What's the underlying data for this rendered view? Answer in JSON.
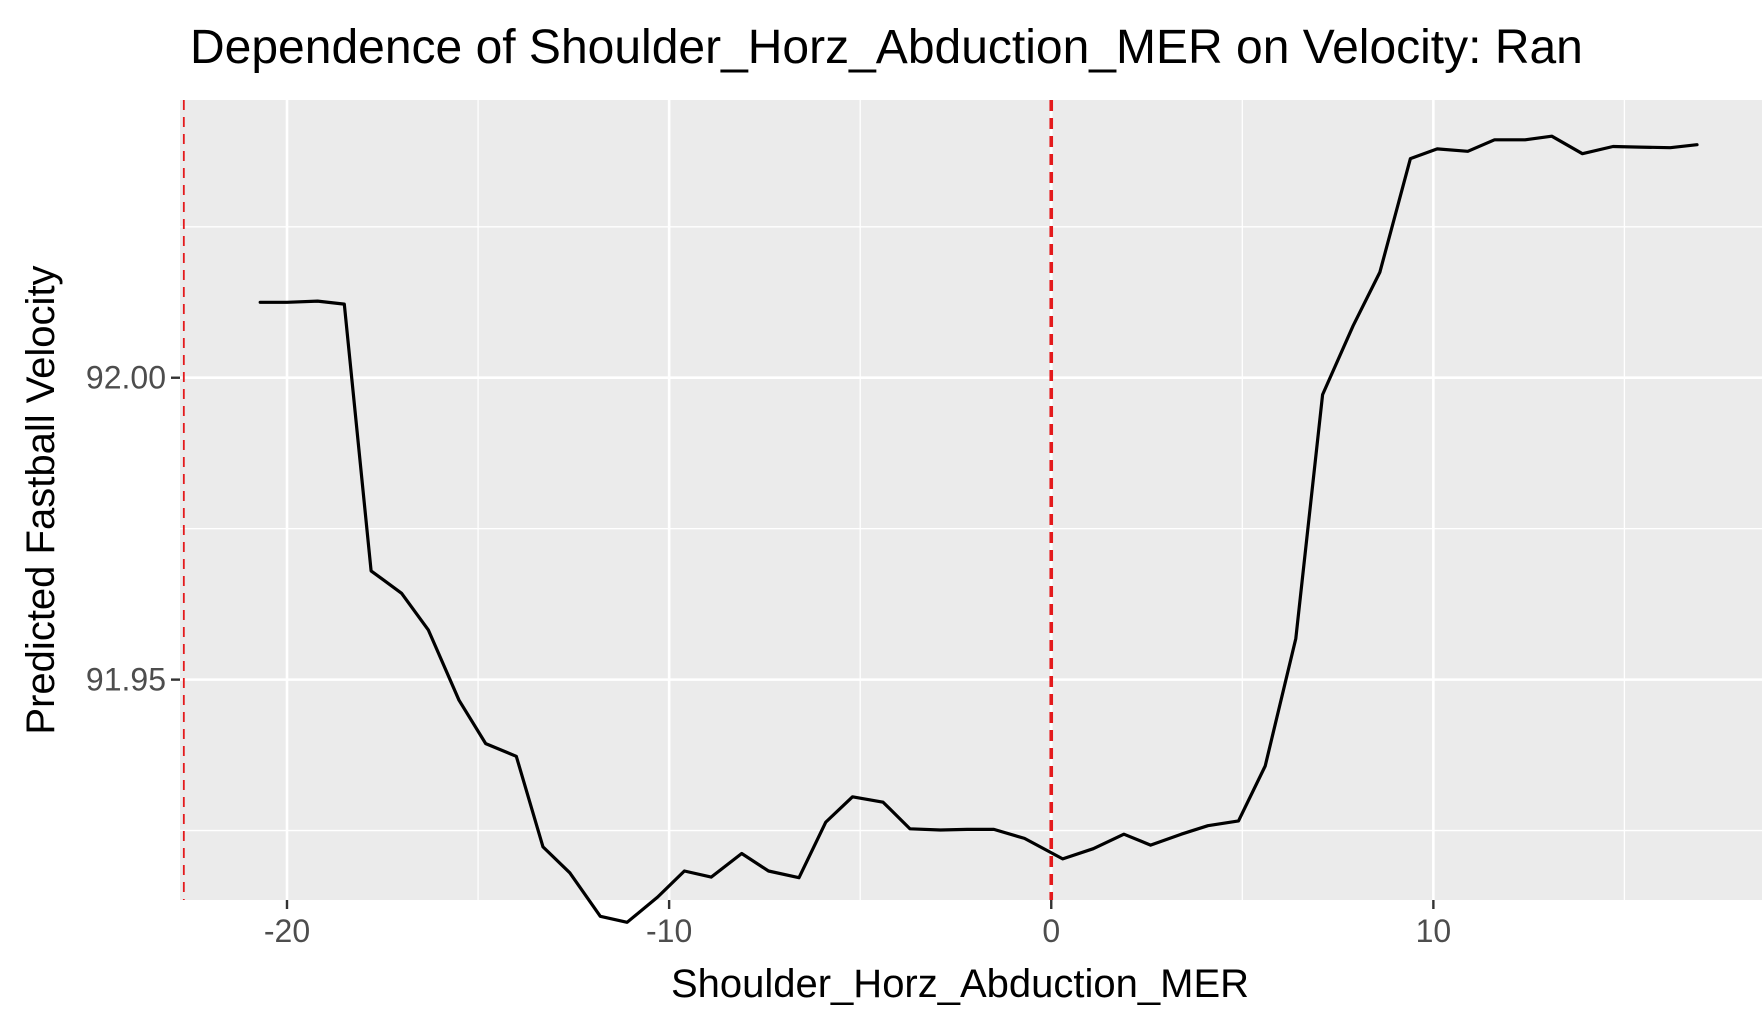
{
  "chart_data": {
    "type": "line",
    "title": "Dependence of Shoulder_Horz_Abduction_MER on Velocity: Ran",
    "xlabel": "Shoulder_Horz_Abduction_MER",
    "ylabel": "Predicted Fastball Velocity",
    "xlim": [
      -22.8,
      18.6
    ],
    "ylim": [
      91.9135,
      92.046
    ],
    "x_ticks": [
      -20,
      -10,
      0,
      10
    ],
    "x_tick_labels": [
      "-20",
      "-10",
      "0",
      "10"
    ],
    "y_ticks": [
      91.95,
      92.0
    ],
    "y_tick_labels": [
      "91.95",
      "92.00"
    ],
    "grid": true,
    "reference_lines": [
      {
        "x": -22.7,
        "color": "#e41a1c",
        "style": "dashed",
        "weight": "thin"
      },
      {
        "x": 0.0,
        "color": "#e41a1c",
        "style": "dashed",
        "weight": "thick"
      }
    ],
    "series": [
      {
        "color": "#000000",
        "x": [
          -20.7,
          -20.0,
          -19.2,
          -18.5,
          -17.8,
          -17.0,
          -16.3,
          -15.5,
          -14.8,
          -14.0,
          -13.3,
          -12.6,
          -11.8,
          -11.1,
          -10.3,
          -9.6,
          -8.9,
          -8.1,
          -7.4,
          -6.6,
          -5.9,
          -5.2,
          -4.4,
          -3.7,
          -2.9,
          -2.2,
          -1.5,
          -0.7,
          0.3,
          1.1,
          1.9,
          2.6,
          3.4,
          4.1,
          4.9,
          5.6,
          6.4,
          7.1,
          7.9,
          8.6,
          9.4,
          10.1,
          10.9,
          11.6,
          12.4,
          13.1,
          13.9,
          14.7,
          15.4,
          16.2,
          16.9
        ],
        "y": [
          92.0125,
          92.0125,
          92.0127,
          92.0122,
          91.968,
          91.9643,
          91.9582,
          91.9466,
          91.9394,
          91.9373,
          91.9223,
          91.918,
          91.9108,
          91.9098,
          91.914,
          91.9183,
          91.9173,
          91.9212,
          91.9183,
          91.9172,
          91.9264,
          91.9306,
          91.9297,
          91.9253,
          91.9251,
          91.9252,
          91.9252,
          91.9237,
          91.9203,
          91.922,
          91.9244,
          91.9226,
          91.9244,
          91.9258,
          91.9266,
          91.9357,
          91.9568,
          91.9972,
          92.0086,
          92.0175,
          92.0363,
          92.0379,
          92.0375,
          92.0394,
          92.0394,
          92.04,
          92.0371,
          92.0383,
          92.0382,
          92.0381,
          92.0386
        ]
      }
    ]
  }
}
